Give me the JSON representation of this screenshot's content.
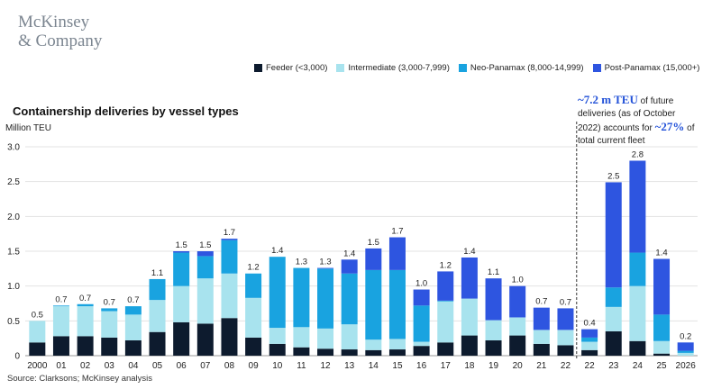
{
  "brand": {
    "line1": "McKinsey",
    "line2": "& Company"
  },
  "title": "Containership deliveries by vessel types",
  "unit_label": "Million TEU",
  "source": "Source: Clarksons; McKinsey analysis",
  "annotation": {
    "part1": "~7.2 m TEU",
    "part2": " of future deliveries (as of October 2022) accounts for ",
    "part3": "~27%",
    "part4": " of total current fleet"
  },
  "colors": {
    "feeder": "#0d1b2e",
    "intermediate": "#a8e3ee",
    "neo_panamax": "#19a3e0",
    "post_panamax": "#2e55e0"
  },
  "chart_data": {
    "type": "bar",
    "stacked": true,
    "ylabel": "Million TEU",
    "ylim": [
      0,
      3.0
    ],
    "yticks": [
      "0",
      "0.5",
      "1.0",
      "1.5",
      "2.0",
      "2.5",
      "3.0"
    ],
    "categories": [
      "2000",
      "01",
      "02",
      "03",
      "04",
      "05",
      "06",
      "07",
      "08",
      "09",
      "10",
      "11",
      "12",
      "13",
      "14",
      "15",
      "16",
      "17",
      "18",
      "19",
      "20",
      "21",
      "22",
      "22",
      "23",
      "24",
      "25",
      "2026"
    ],
    "totals_labels": [
      "0.5",
      "0.7",
      "0.7",
      "0.7",
      "0.7",
      "1.1",
      "1.5",
      "1.5",
      "1.7",
      "1.2",
      "1.4",
      "1.3",
      "1.3",
      "1.4",
      "1.5",
      "1.7",
      "1.0",
      "1.2",
      "1.4",
      "1.1",
      "1.0",
      "0.7",
      "0.7",
      "0.4",
      "2.5",
      "2.8",
      "1.4",
      "0.2"
    ],
    "divider_after_index": 22,
    "series": [
      {
        "name": "Feeder (<3,000)",
        "key": "feeder",
        "values": [
          0.19,
          0.28,
          0.28,
          0.26,
          0.22,
          0.34,
          0.48,
          0.46,
          0.54,
          0.26,
          0.17,
          0.12,
          0.1,
          0.09,
          0.08,
          0.09,
          0.14,
          0.19,
          0.29,
          0.22,
          0.29,
          0.17,
          0.15,
          0.08,
          0.35,
          0.21,
          0.03,
          0.0
        ]
      },
      {
        "name": "Intermediate (3,000-7,999)",
        "key": "intermediate",
        "values": [
          0.31,
          0.43,
          0.43,
          0.38,
          0.37,
          0.46,
          0.52,
          0.65,
          0.64,
          0.57,
          0.23,
          0.29,
          0.29,
          0.36,
          0.15,
          0.15,
          0.06,
          0.59,
          0.53,
          0.29,
          0.26,
          0.2,
          0.22,
          0.12,
          0.35,
          0.79,
          0.18,
          0.04
        ]
      },
      {
        "name": "Neo-Panamax (8,000-14,999)",
        "key": "neo_panamax",
        "values": [
          0.0,
          0.01,
          0.03,
          0.04,
          0.12,
          0.3,
          0.48,
          0.32,
          0.48,
          0.35,
          1.02,
          0.85,
          0.86,
          0.73,
          1.0,
          0.99,
          0.52,
          0.01,
          0.0,
          0.0,
          0.0,
          0.0,
          0.0,
          0.06,
          0.28,
          0.48,
          0.38,
          0.03
        ]
      },
      {
        "name": "Post-Panamax (15,000+)",
        "key": "post_panamax",
        "values": [
          0.0,
          0.0,
          0.0,
          0.0,
          0.0,
          0.0,
          0.02,
          0.07,
          0.02,
          0.0,
          0.0,
          0.0,
          0.01,
          0.2,
          0.31,
          0.47,
          0.23,
          0.42,
          0.59,
          0.6,
          0.45,
          0.32,
          0.31,
          0.12,
          1.51,
          1.32,
          0.8,
          0.12
        ]
      }
    ]
  }
}
